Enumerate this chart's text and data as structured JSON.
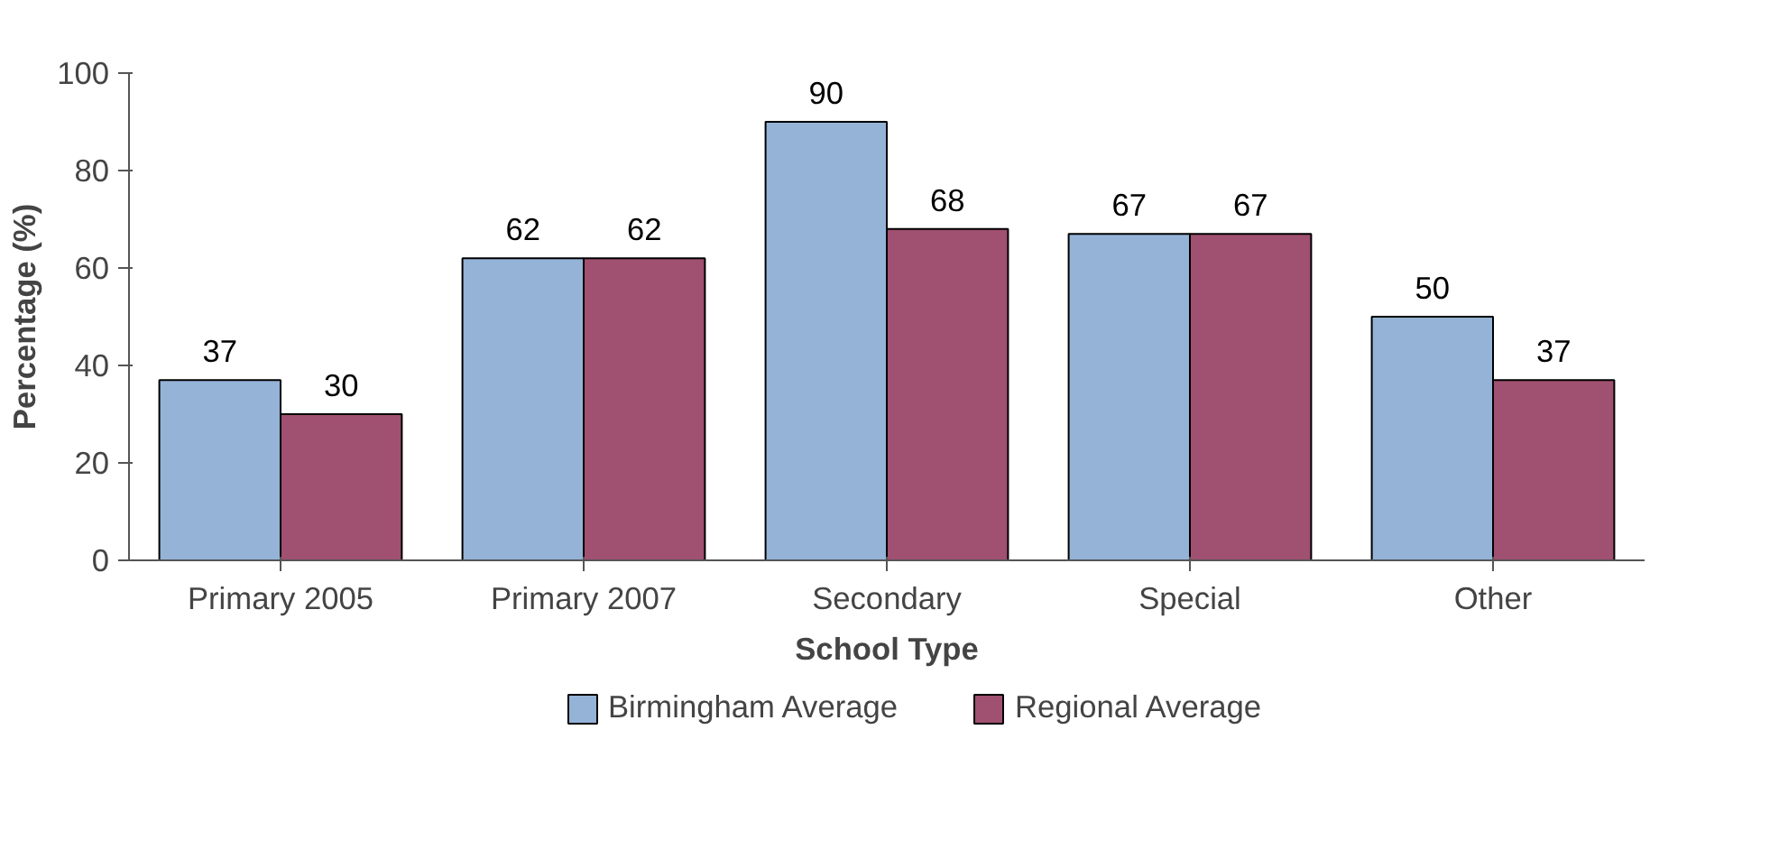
{
  "chart_data": {
    "type": "bar",
    "xlabel": "School Type",
    "ylabel": "Percentage (%)",
    "categories": [
      "Primary 2005",
      "Primary 2007",
      "Secondary",
      "Special",
      "Other"
    ],
    "series": [
      {
        "name": "Birmingham Average",
        "color": "#95b3d7",
        "values": [
          37,
          62,
          90,
          67,
          50
        ]
      },
      {
        "name": "Regional Average",
        "color": "#a05070",
        "values": [
          30,
          62,
          68,
          67,
          37
        ]
      }
    ],
    "ylim": [
      0,
      100
    ],
    "yticks": [
      0,
      20,
      40,
      60,
      80,
      100
    ],
    "grid": false,
    "legend": "bottom",
    "data_labels": true
  }
}
